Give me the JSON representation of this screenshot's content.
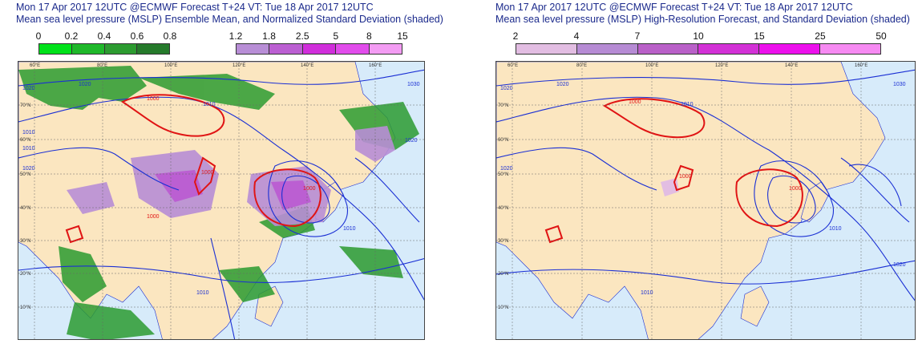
{
  "left_panel": {
    "title_line1": "Mon 17 Apr 2017 12UTC @ECMWF Forecast T+24 VT: Tue 18 Apr 2017 12UTC",
    "title_line2": "Mean sea level pressure (MSLP) Ensemble Mean, and Normalized Standard Deviation (shaded)",
    "legend_green": {
      "labels": [
        "0",
        "0.2",
        "0.4",
        "0.6",
        "0.8"
      ],
      "colors": [
        "#00e21a",
        "#1fb82a",
        "#2c9b30",
        "#257a2b"
      ]
    },
    "legend_purple": {
      "labels": [
        "1.2",
        "1.8",
        "2.5",
        "5",
        "8",
        "15"
      ],
      "colors": [
        "#b88ed6",
        "#bb5fd2",
        "#d02edb",
        "#e14ceb",
        "#f39cf3"
      ]
    },
    "contour_labels": [
      "1020",
      "1020",
      "1030",
      "1010",
      "1000",
      "1010",
      "1010",
      "1020",
      "1000",
      "1000",
      "1000",
      "1010",
      "1010",
      "1020"
    ]
  },
  "right_panel": {
    "title_line1": "Mon 17 Apr 2017 12UTC @ECMWF Forecast T+24 VT: Tue 18 Apr 2017 12UTC",
    "title_line2": "Mean sea level pressure (MSLP) High-Resolution Forecast, and Standard Deviation (shaded)",
    "legend": {
      "labels": [
        "2",
        "4",
        "7",
        "10",
        "15",
        "25",
        "50"
      ],
      "colors": [
        "#e2bde2",
        "#b68bd4",
        "#b960c8",
        "#d231d6",
        "#ec10ec",
        "#f68af2"
      ]
    },
    "contour_labels": [
      "1020",
      "1020",
      "1030",
      "1010",
      "1000",
      "1020",
      "1000",
      "1000",
      "1010",
      "1020",
      "1010"
    ]
  },
  "map_axes": {
    "lon_labels": [
      "60°E",
      "80°E",
      "100°E",
      "120°E",
      "140°E",
      "160°E"
    ],
    "lat_labels": [
      "70°N",
      "60°N",
      "50°N",
      "40°N",
      "30°N",
      "20°N",
      "10°N"
    ]
  },
  "colors": {
    "ocean": "#d7ebfa",
    "land": "#fbe6c0",
    "isobar": "#1a2fd4",
    "low_isobar": "#e01414",
    "title": "#1b2a8c"
  }
}
